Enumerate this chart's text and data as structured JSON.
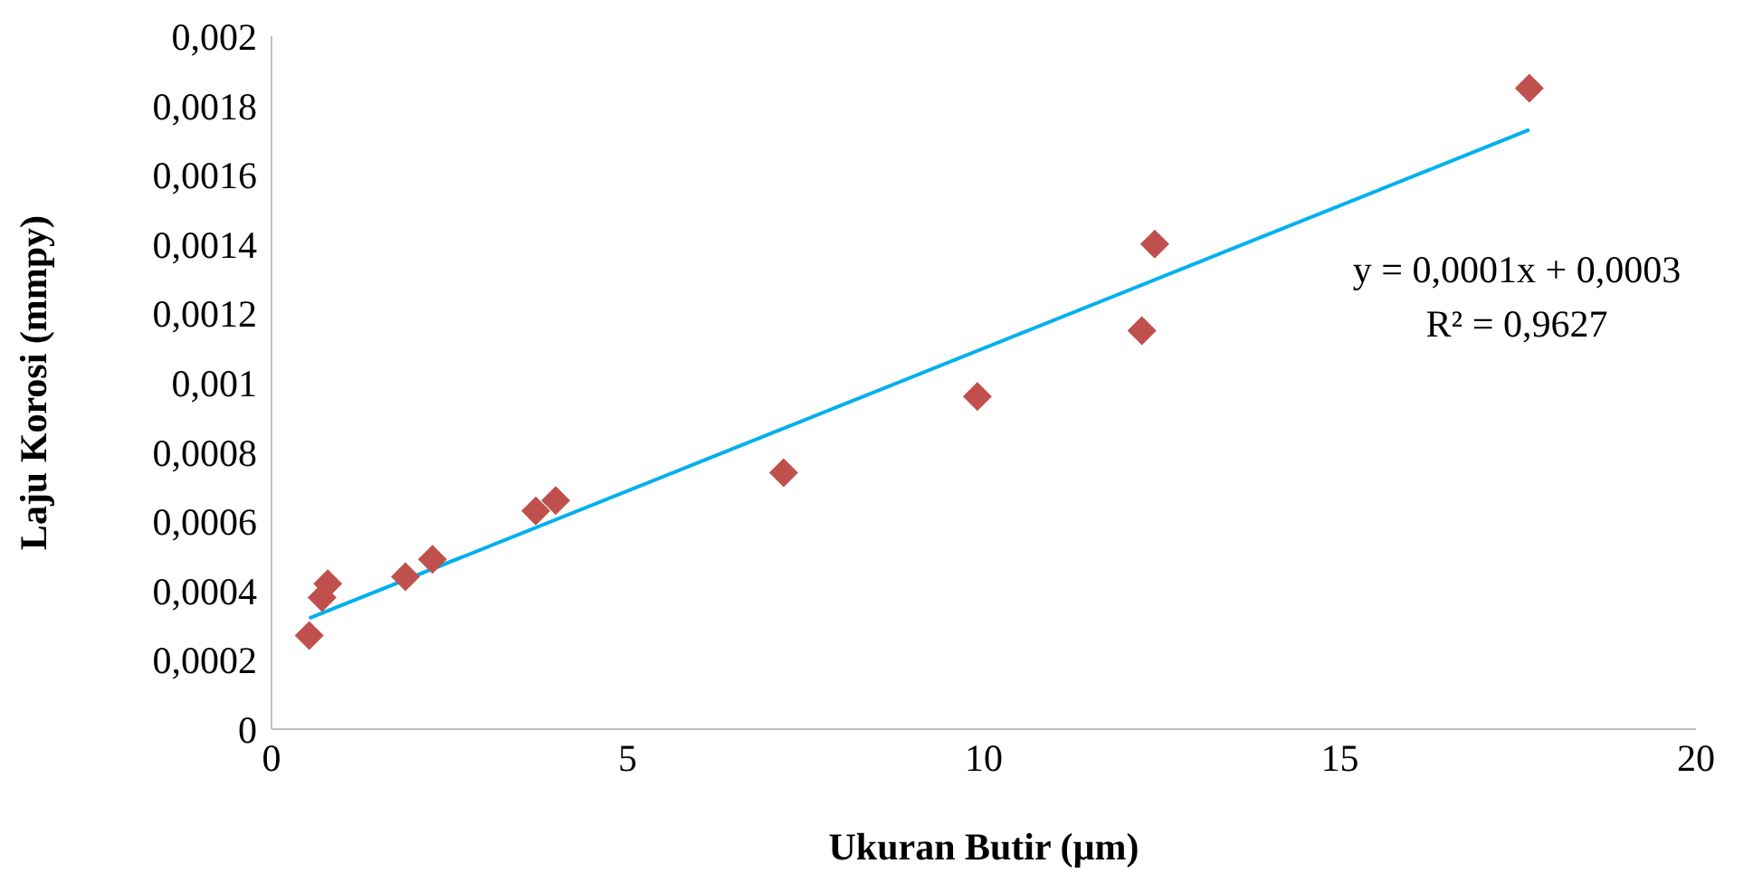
{
  "chart_data": {
    "type": "scatter",
    "xlabel": "Ukuran Butir (µm)",
    "ylabel": "Laju Korosi (mmpy)",
    "xlim": [
      0,
      20
    ],
    "xticks": [
      0,
      5,
      10,
      15,
      20
    ],
    "ylim": [
      0,
      0.002
    ],
    "yticks": [
      0,
      {
        "value": 0.0002,
        "label": "0,0002"
      },
      {
        "value": 0.0004,
        "label": "0,0004"
      },
      {
        "value": 0.0006,
        "label": "0,0006"
      },
      {
        "value": 0.0008,
        "label": "0,0008"
      },
      {
        "value": 0.001,
        "label": "0,001"
      },
      {
        "value": 0.0012,
        "label": "0,0012"
      },
      {
        "value": 0.0014,
        "label": "0,0014"
      },
      {
        "value": 0.0016,
        "label": "0,0016"
      },
      {
        "value": 0.0018,
        "label": "0,0018"
      },
      {
        "value": 0.002,
        "label": "0,002"
      }
    ],
    "marker": "diamond",
    "series": [
      {
        "color": "#c0504d",
        "x": [
          0.53,
          0.71,
          0.79,
          1.88,
          2.26,
          3.71,
          3.99,
          7.19,
          9.91,
          12.22,
          12.4,
          17.66
        ],
        "values": [
          0.00027,
          0.00038,
          0.00042,
          0.00044,
          0.00049,
          0.00063,
          0.00066,
          0.00074,
          0.00096,
          0.00115,
          0.0014,
          0.00185
        ]
      },
      {
        "type": "line",
        "color": "#00b0f0",
        "marker": "none",
        "line_style": "solid",
        "x": [
          0.53,
          17.66
        ],
        "values": [
          0.00032,
          0.00173
        ]
      }
    ],
    "annotations": [
      "y = 0,0001x + 0,0003",
      "R² = 0,9627"
    ]
  }
}
